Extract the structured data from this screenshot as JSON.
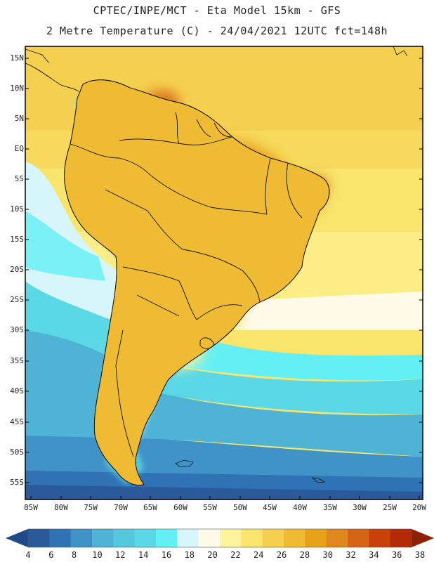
{
  "header": {
    "line1": "CPTEC/INPE/MCT -  Eta Model 15km - GFS",
    "line2": "2 Metre Temperature (C) - 24/04/2021 12UTC fct=148h"
  },
  "map": {
    "lat_labels": [
      "15N",
      "10N",
      "5N",
      "EQ",
      "5S",
      "10S",
      "15S",
      "20S",
      "25S",
      "30S",
      "35S",
      "40S",
      "45S",
      "50S",
      "55S"
    ],
    "lon_labels": [
      "85W",
      "80W",
      "75W",
      "70W",
      "65W",
      "60W",
      "55W",
      "50W",
      "45W",
      "40W",
      "35W",
      "30W",
      "25W",
      "20W"
    ],
    "region": "South America",
    "variable": "2 metre temperature"
  },
  "colorbar": {
    "labels": [
      "4",
      "6",
      "8",
      "10",
      "12",
      "14",
      "16",
      "18",
      "20",
      "22",
      "24",
      "26",
      "28",
      "30",
      "32",
      "34",
      "36",
      "38"
    ],
    "colors": [
      "#2b5a9a",
      "#2f73b5",
      "#3f93c6",
      "#4fb3d6",
      "#55c8de",
      "#5ad8e6",
      "#63f0f4",
      "#d6f6fb",
      "#fffbe8",
      "#fff49e",
      "#f9e56b",
      "#f5d04e",
      "#eebb32",
      "#e8a21a",
      "#e0871e",
      "#d66414",
      "#c8400a",
      "#b22a08"
    ],
    "low_color": "#1f4a88",
    "high_color": "#8e2005"
  }
}
